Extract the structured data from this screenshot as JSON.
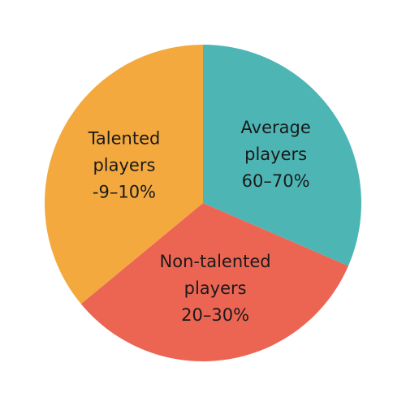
{
  "chart_data": {
    "type": "pie",
    "categories": [
      [
        "Average",
        "players",
        "60–70%"
      ],
      [
        "Non-talented",
        "players",
        "20–30%"
      ],
      [
        "Talented",
        "players",
        "-9–10%"
      ]
    ],
    "values": [
      31.5,
      32.5,
      36
    ],
    "colors": [
      "#4db6b5",
      "#ec6553",
      "#f4a93f"
    ]
  }
}
